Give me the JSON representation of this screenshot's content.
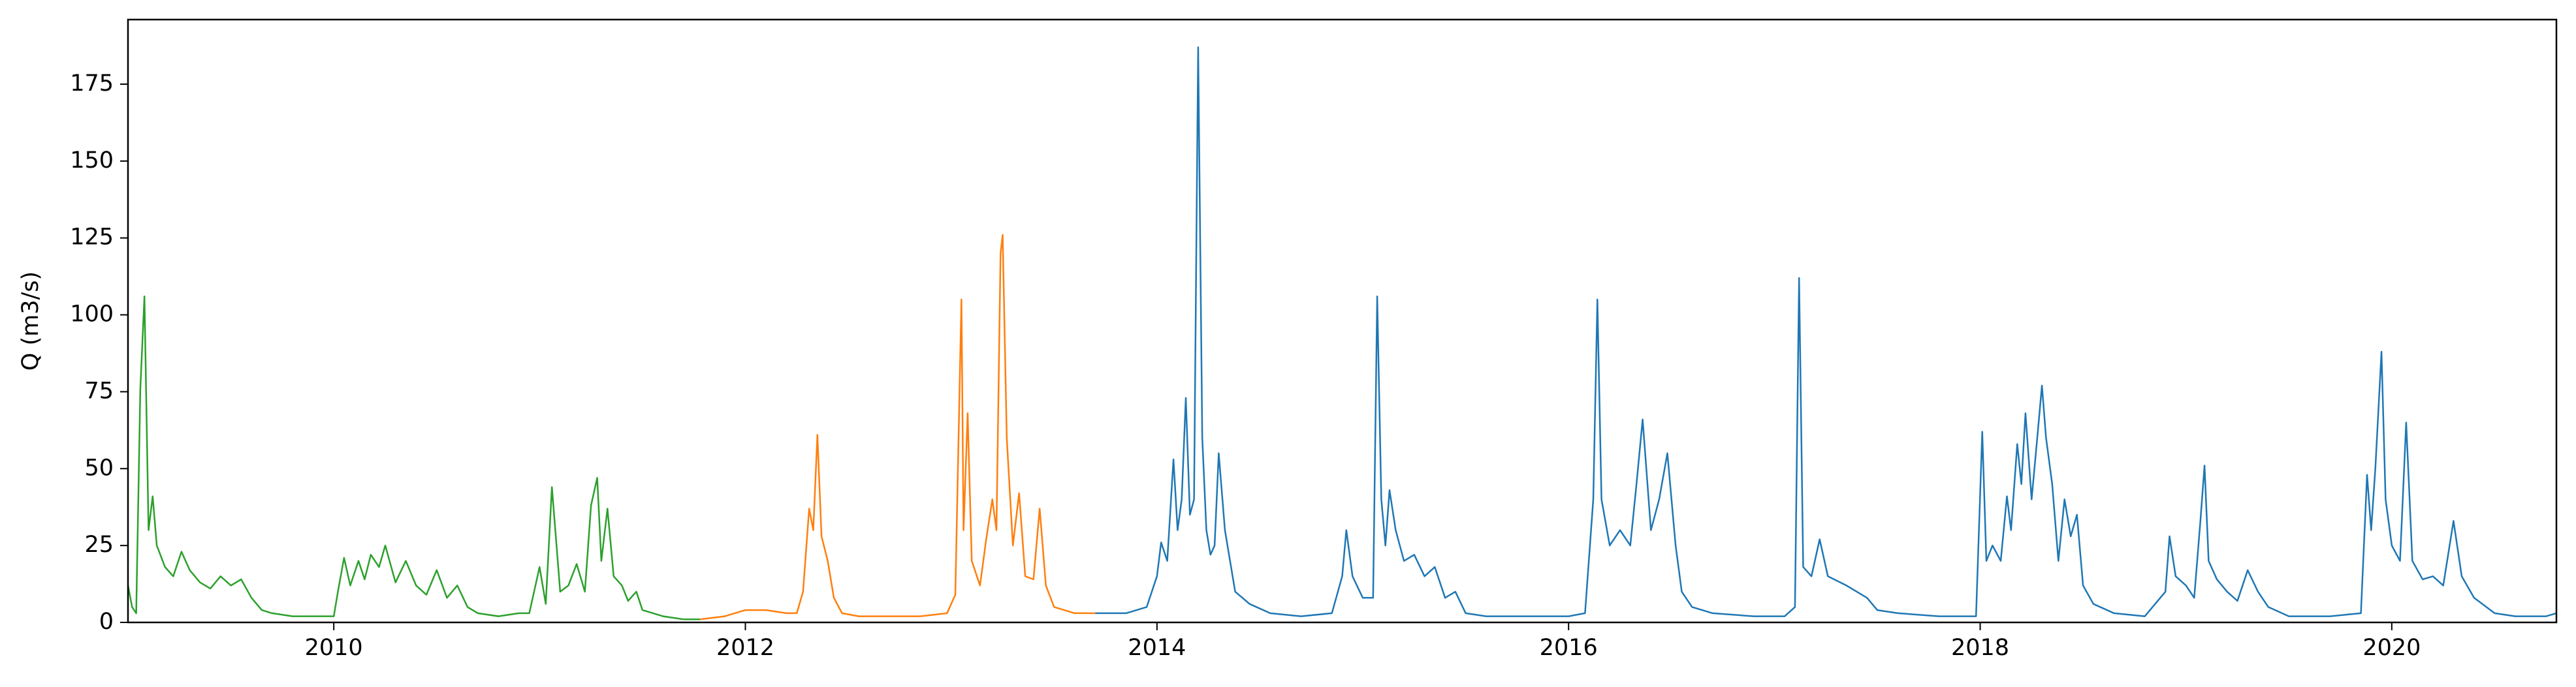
{
  "chart_data": {
    "type": "line",
    "ylabel": "Q (m3/s)",
    "xlim": [
      2009.0,
      2020.8
    ],
    "xticks": [
      2010,
      2012,
      2014,
      2016,
      2018,
      2020
    ],
    "ylim": [
      0,
      196
    ],
    "yticks": [
      0,
      25,
      50,
      75,
      100,
      125,
      150,
      175
    ],
    "series": [
      {
        "color": "#2ca02c",
        "x": [
          2009.0,
          2009.02,
          2009.04,
          2009.06,
          2009.08,
          2009.1,
          2009.12,
          2009.14,
          2009.18,
          2009.22,
          2009.26,
          2009.3,
          2009.35,
          2009.4,
          2009.45,
          2009.5,
          2009.55,
          2009.6,
          2009.65,
          2009.7,
          2009.8,
          2009.9,
          2010.0,
          2010.02,
          2010.05,
          2010.08,
          2010.12,
          2010.15,
          2010.18,
          2010.22,
          2010.25,
          2010.3,
          2010.35,
          2010.4,
          2010.45,
          2010.5,
          2010.55,
          2010.6,
          2010.65,
          2010.7,
          2010.8,
          2010.9,
          2010.95,
          2011.0,
          2011.03,
          2011.06,
          2011.1,
          2011.14,
          2011.18,
          2011.22,
          2011.25,
          2011.28,
          2011.3,
          2011.33,
          2011.36,
          2011.4,
          2011.43,
          2011.47,
          2011.5,
          2011.6,
          2011.7,
          2011.78
        ],
        "values": [
          12,
          5,
          3,
          76,
          106,
          30,
          41,
          25,
          18,
          15,
          23,
          17,
          13,
          11,
          15,
          12,
          14,
          8,
          4,
          3,
          2,
          2,
          2,
          10,
          21,
          12,
          20,
          14,
          22,
          18,
          25,
          13,
          20,
          12,
          9,
          17,
          8,
          12,
          5,
          3,
          2,
          3,
          3,
          18,
          6,
          44,
          10,
          12,
          19,
          10,
          38,
          47,
          20,
          37,
          15,
          12,
          7,
          10,
          4,
          2,
          1,
          1
        ]
      },
      {
        "color": "#ff7f0e",
        "x": [
          2011.78,
          2011.9,
          2012.0,
          2012.1,
          2012.2,
          2012.25,
          2012.28,
          2012.31,
          2012.33,
          2012.35,
          2012.37,
          2012.4,
          2012.43,
          2012.47,
          2012.55,
          2012.7,
          2012.85,
          2012.98,
          2013.02,
          2013.05,
          2013.06,
          2013.08,
          2013.1,
          2013.14,
          2013.17,
          2013.2,
          2013.22,
          2013.24,
          2013.25,
          2013.27,
          2013.3,
          2013.33,
          2013.36,
          2013.4,
          2013.43,
          2013.46,
          2013.5,
          2013.6,
          2013.7
        ],
        "values": [
          1,
          2,
          4,
          4,
          3,
          3,
          10,
          37,
          30,
          61,
          28,
          20,
          8,
          3,
          2,
          2,
          2,
          3,
          9,
          105,
          30,
          68,
          20,
          12,
          27,
          40,
          30,
          120,
          126,
          60,
          25,
          42,
          15,
          14,
          37,
          12,
          5,
          3,
          3
        ]
      },
      {
        "color": "#1f77b4",
        "x": [
          2013.7,
          2013.85,
          2013.95,
          2014.0,
          2014.02,
          2014.05,
          2014.08,
          2014.1,
          2014.12,
          2014.14,
          2014.16,
          2014.18,
          2014.2,
          2014.22,
          2014.24,
          2014.26,
          2014.28,
          2014.3,
          2014.33,
          2014.38,
          2014.45,
          2014.55,
          2014.7,
          2014.85,
          2014.9,
          2014.92,
          2014.95,
          2015.0,
          2015.05,
          2015.07,
          2015.09,
          2015.11,
          2015.13,
          2015.16,
          2015.2,
          2015.25,
          2015.3,
          2015.35,
          2015.4,
          2015.45,
          2015.5,
          2015.6,
          2015.8,
          2016.0,
          2016.08,
          2016.12,
          2016.14,
          2016.16,
          2016.2,
          2016.25,
          2016.3,
          2016.33,
          2016.36,
          2016.4,
          2016.44,
          2016.48,
          2016.52,
          2016.55,
          2016.6,
          2016.7,
          2016.9,
          2017.05,
          2017.1,
          2017.12,
          2017.14,
          2017.18,
          2017.22,
          2017.26,
          2017.35,
          2017.45,
          2017.5,
          2017.6,
          2017.8,
          2017.98,
          2018.01,
          2018.03,
          2018.06,
          2018.1,
          2018.13,
          2018.15,
          2018.18,
          2018.2,
          2018.22,
          2018.25,
          2018.28,
          2018.3,
          2018.32,
          2018.35,
          2018.38,
          2018.41,
          2018.44,
          2018.47,
          2018.5,
          2018.55,
          2018.65,
          2018.8,
          2018.9,
          2018.92,
          2018.95,
          2019.0,
          2019.04,
          2019.07,
          2019.09,
          2019.11,
          2019.15,
          2019.2,
          2019.25,
          2019.3,
          2019.35,
          2019.4,
          2019.5,
          2019.7,
          2019.85,
          2019.88,
          2019.9,
          2019.92,
          2019.95,
          2019.97,
          2020.0,
          2020.04,
          2020.07,
          2020.1,
          2020.15,
          2020.2,
          2020.25,
          2020.3,
          2020.34,
          2020.4,
          2020.5,
          2020.6,
          2020.75,
          2020.8
        ],
        "values": [
          3,
          3,
          5,
          15,
          26,
          20,
          53,
          30,
          40,
          73,
          35,
          40,
          187,
          60,
          30,
          22,
          25,
          55,
          30,
          10,
          6,
          3,
          2,
          3,
          15,
          30,
          15,
          8,
          8,
          106,
          40,
          25,
          43,
          30,
          20,
          22,
          15,
          18,
          8,
          10,
          3,
          2,
          2,
          2,
          3,
          40,
          105,
          40,
          25,
          30,
          25,
          45,
          66,
          30,
          40,
          55,
          25,
          10,
          5,
          3,
          2,
          2,
          5,
          112,
          18,
          15,
          27,
          15,
          12,
          8,
          4,
          3,
          2,
          2,
          62,
          20,
          25,
          20,
          41,
          30,
          58,
          45,
          68,
          40,
          62,
          77,
          60,
          45,
          20,
          40,
          28,
          35,
          12,
          6,
          3,
          2,
          10,
          28,
          15,
          12,
          8,
          33,
          51,
          20,
          14,
          10,
          7,
          17,
          10,
          5,
          2,
          2,
          3,
          48,
          30,
          50,
          88,
          40,
          25,
          20,
          65,
          20,
          14,
          15,
          12,
          33,
          15,
          8,
          3,
          2,
          2,
          3
        ]
      }
    ]
  }
}
